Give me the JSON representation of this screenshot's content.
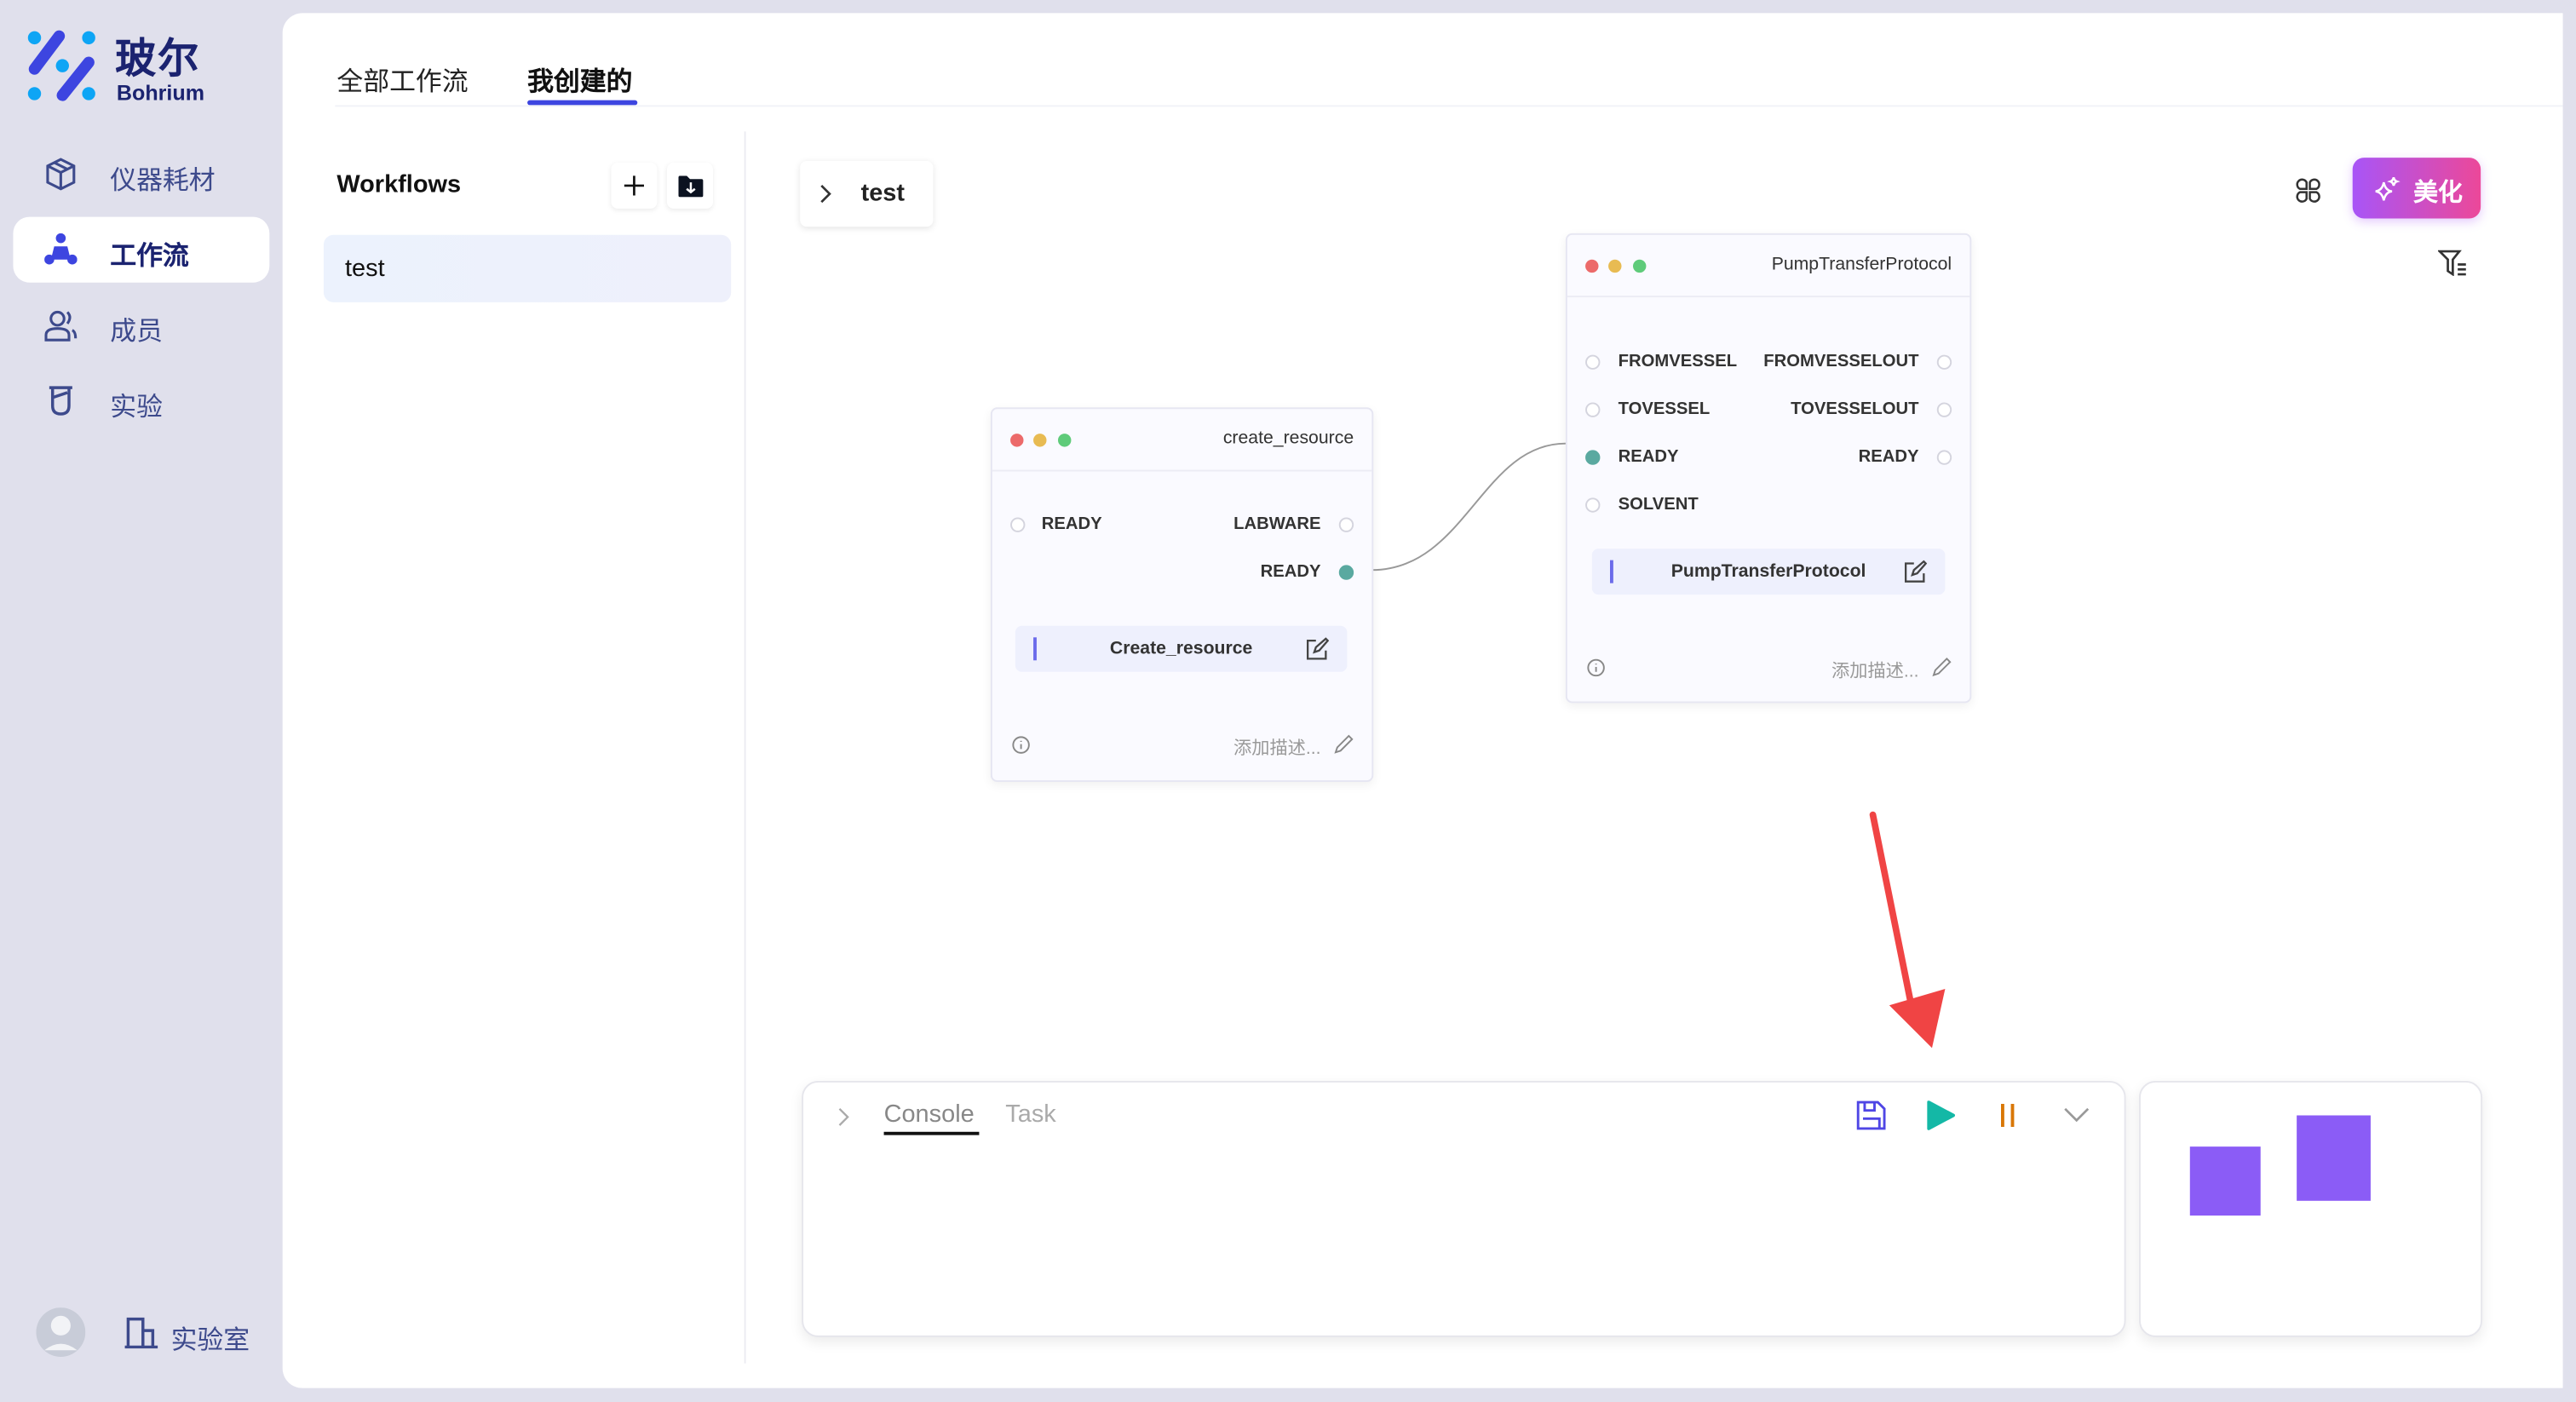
{
  "brand": {
    "name_cn": "玻尔",
    "name_en": "Bohrium"
  },
  "sidebar": {
    "items": [
      {
        "label": "仪器耗材",
        "icon": "cube-icon"
      },
      {
        "label": "工作流",
        "icon": "workflow-icon",
        "active": true
      },
      {
        "label": "成员",
        "icon": "users-icon"
      },
      {
        "label": "实验",
        "icon": "beaker-icon"
      }
    ],
    "footer": {
      "lab_label": "实验室"
    }
  },
  "tabs": [
    {
      "label": "全部工作流"
    },
    {
      "label": "我创建的",
      "active": true
    }
  ],
  "workflows": {
    "title": "Workflows",
    "items": [
      {
        "name": "test",
        "selected": true
      }
    ]
  },
  "canvas": {
    "breadcrumb": "test",
    "beautify_label": "美化",
    "nodes": [
      {
        "title": "create_resource",
        "inputs": [
          "READY"
        ],
        "outputs": [
          "LABWARE",
          "READY"
        ],
        "function": "Create_resource",
        "desc_placeholder": "添加描述..."
      },
      {
        "title": "PumpTransferProtocol",
        "inputs": [
          "FROMVESSEL",
          "TOVESSEL",
          "READY",
          "SOLVENT"
        ],
        "outputs": [
          "FROMVESSELOUT",
          "TOVESSELOUT",
          "READY"
        ],
        "function": "PumpTransferProtocol",
        "desc_placeholder": "添加描述..."
      }
    ]
  },
  "console": {
    "tabs": [
      {
        "label": "Console",
        "active": true
      },
      {
        "label": "Task"
      }
    ]
  },
  "colors": {
    "accent": "#3d45e0",
    "port_connected": "#5aa9a0",
    "play": "#14b8a6",
    "pause": "#d97706",
    "minimap": "#8b5cf6",
    "annotation_arrow": "#f04444"
  }
}
